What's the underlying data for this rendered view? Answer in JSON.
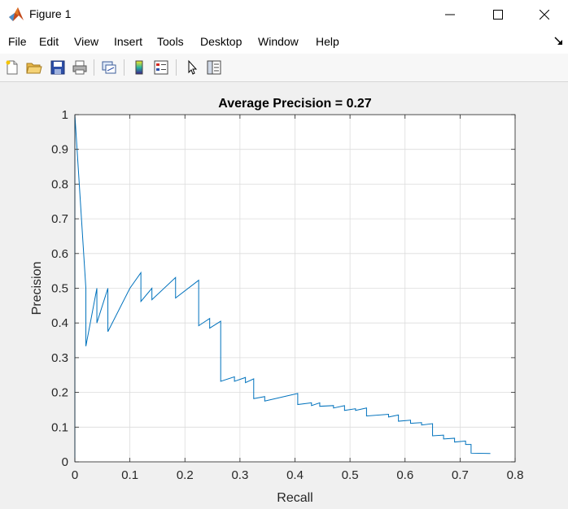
{
  "window": {
    "title": "Figure 1",
    "controls": {
      "minimize_icon": "minimize-icon",
      "maximize_icon": "maximize-icon",
      "close_icon": "close-icon"
    }
  },
  "menubar": {
    "items": [
      "File",
      "Edit",
      "View",
      "Insert",
      "Tools",
      "Desktop",
      "Window",
      "Help"
    ],
    "dock_icon": "dock-arrow-icon"
  },
  "toolbar": {
    "buttons": [
      {
        "name": "new-figure",
        "icon": "new-file-icon"
      },
      {
        "name": "open-file",
        "icon": "open-folder-icon"
      },
      {
        "name": "save-figure",
        "icon": "save-disk-icon"
      },
      {
        "name": "print-figure",
        "icon": "printer-icon"
      },
      {
        "name": "link-plot",
        "icon": "link-plot-icon"
      },
      {
        "name": "insert-colorbar",
        "icon": "colorbar-icon"
      },
      {
        "name": "insert-legend",
        "icon": "legend-icon"
      },
      {
        "name": "edit-plot",
        "icon": "pointer-arrow-icon"
      },
      {
        "name": "property-inspector",
        "icon": "property-panel-icon"
      }
    ]
  },
  "chart_data": {
    "type": "line",
    "title": "Average Precision = 0.27",
    "xlabel": "Recall",
    "ylabel": "Precision",
    "xlim": [
      0,
      0.8
    ],
    "ylim": [
      0,
      1
    ],
    "xticks": [
      "0",
      "0.1",
      "0.2",
      "0.3",
      "0.4",
      "0.5",
      "0.6",
      "0.7",
      "0.8"
    ],
    "yticks": [
      "0",
      "0.1",
      "0.2",
      "0.3",
      "0.4",
      "0.5",
      "0.6",
      "0.7",
      "0.8",
      "0.9",
      "1"
    ],
    "grid": true,
    "line_color": "#0072bd",
    "series": [
      {
        "x": [
          0,
          0,
          0.02,
          0.02,
          0.04,
          0.04,
          0.06,
          0.06,
          0.1,
          0.12,
          0.12,
          0.14,
          0.14,
          0.183,
          0.183,
          0.225,
          0.225,
          0.245,
          0.245,
          0.265,
          0.265,
          0.29,
          0.29,
          0.31,
          0.31,
          0.325,
          0.325,
          0.345,
          0.345,
          0.405,
          0.405,
          0.43,
          0.43,
          0.445,
          0.445,
          0.47,
          0.47,
          0.49,
          0.49,
          0.51,
          0.51,
          0.53,
          0.53,
          0.57,
          0.57,
          0.588,
          0.588,
          0.61,
          0.61,
          0.63,
          0.63,
          0.65,
          0.65,
          0.67,
          0.67,
          0.69,
          0.69,
          0.71,
          0.71,
          0.72,
          0.72,
          0.755
        ],
        "y": [
          0,
          1,
          0.5,
          0.333,
          0.5,
          0.4,
          0.5,
          0.375,
          0.5,
          0.545,
          0.462,
          0.5,
          0.467,
          0.531,
          0.472,
          0.523,
          0.392,
          0.413,
          0.385,
          0.405,
          0.232,
          0.245,
          0.232,
          0.243,
          0.228,
          0.239,
          0.182,
          0.188,
          0.175,
          0.197,
          0.165,
          0.17,
          0.162,
          0.17,
          0.16,
          0.162,
          0.155,
          0.162,
          0.148,
          0.153,
          0.148,
          0.155,
          0.132,
          0.137,
          0.129,
          0.135,
          0.117,
          0.12,
          0.111,
          0.113,
          0.106,
          0.11,
          0.075,
          0.077,
          0.066,
          0.068,
          0.057,
          0.06,
          0.05,
          0.05,
          0.025,
          0.024
        ]
      }
    ]
  }
}
